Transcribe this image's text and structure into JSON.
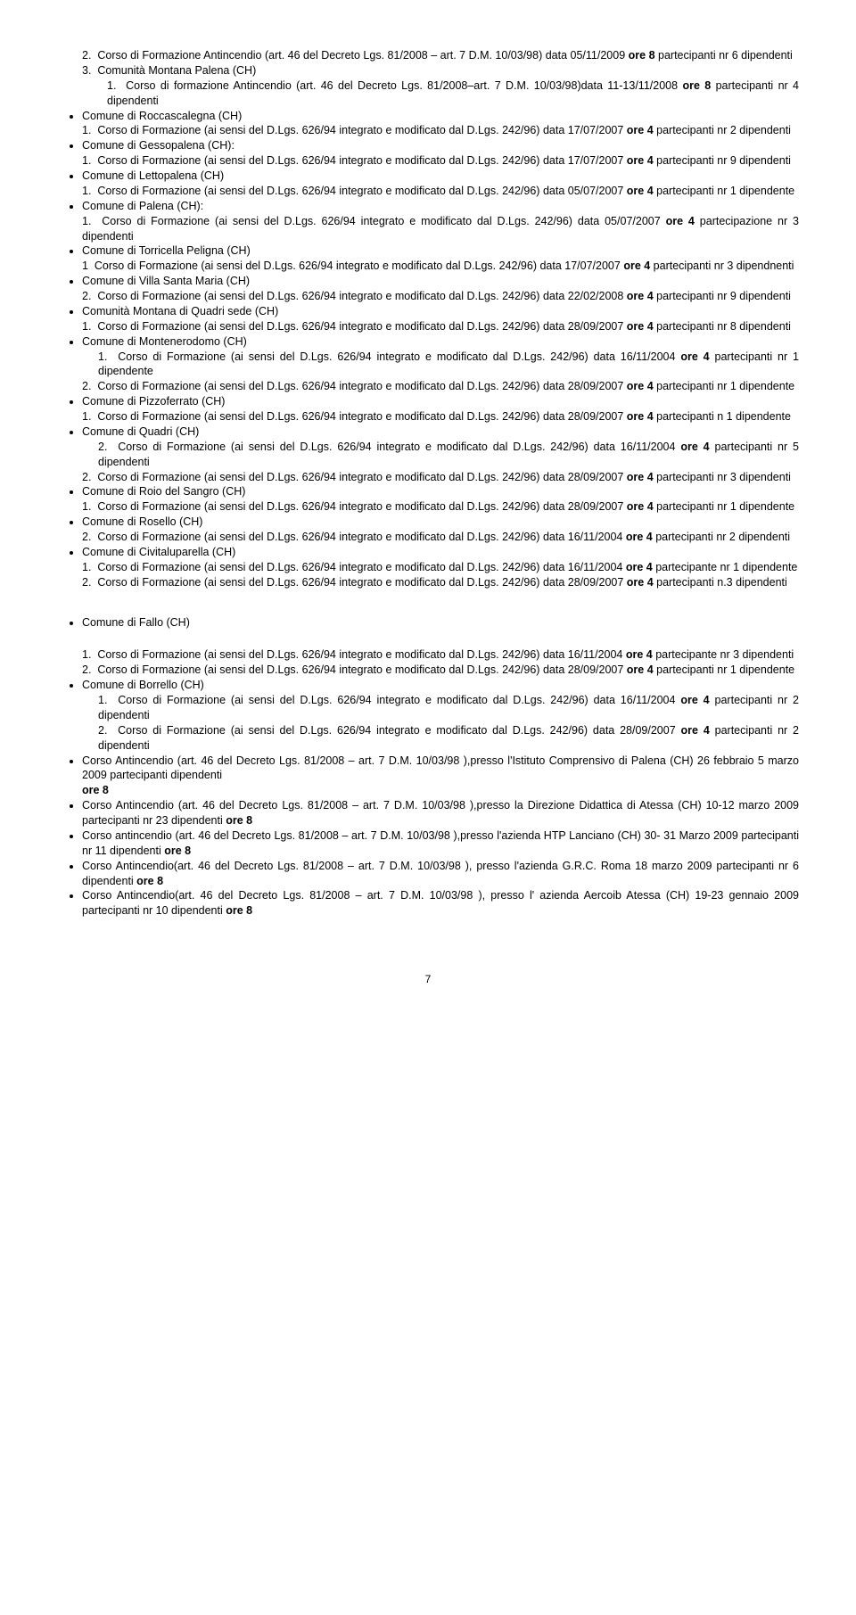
{
  "font_color": "#000000",
  "background_color": "#ffffff",
  "section1": {
    "items": [
      {
        "prefix": "2.",
        "text_a": "Corso di Formazione Antincendio (art. 46 del Decreto Lgs. 81/2008 – art. 7 D.M. 10/03/98) data 05/11/2009 ",
        "bold": "ore 8",
        "text_b": " partecipanti nr 6 dipendenti",
        "indent": true
      },
      {
        "prefix": "3.",
        "text_a": "Comunità Montana Palena  (CH)",
        "indent": true
      },
      {
        "prefix": "1.",
        "text_a": "Corso di formazione Antincendio (art. 46 del Decreto Lgs. 81/2008–art. 7 D.M. 10/03/98)data 11-13/11/2008 ",
        "bold": "ore 8",
        "text_b": "  partecipanti nr 4 dipendenti",
        "indent": true,
        "double_indent": true
      }
    ],
    "bullets": [
      {
        "head": "Comune di Roccascalegna (CH)",
        "lines": [
          {
            "prefix": "1.",
            "text_a": "Corso di Formazione (ai sensi del D.Lgs. 626/94 integrato e modificato dal D.Lgs. 242/96) data 17/07/2007 ",
            "bold": "ore 4",
            "text_b": " partecipanti nr 2 dipendenti"
          }
        ]
      },
      {
        "head": "Comune di Gessopalena (CH):",
        "lines": [
          {
            "prefix": "1.",
            "text_a": "Corso di Formazione (ai sensi del D.Lgs. 626/94 integrato e modificato dal D.Lgs. 242/96)  data 17/07/2007 ",
            "bold": "ore 4",
            "text_b": "  partecipanti nr 9 dipendenti"
          }
        ]
      },
      {
        "head": "Comune di Lettopalena (CH)",
        "lines": [
          {
            "prefix": "1.",
            "text_a": "Corso di Formazione (ai sensi del D.Lgs. 626/94 integrato e modificato dal D.Lgs. 242/96) data 05/07/2007 ",
            "bold": "ore 4",
            "text_b": " partecipanti nr 1 dipendente"
          }
        ]
      },
      {
        "head": "Comune di Palena (CH):",
        "lines": [
          {
            "prefix": "1.",
            "text_a": "Corso di Formazione (ai sensi del D.Lgs. 626/94 integrato e modificato dal D.Lgs. 242/96) data 05/07/2007 ",
            "bold": "ore 4",
            "text_b": " partecipazione nr 3 dipendenti"
          }
        ]
      },
      {
        "head": "Comune di Torricella Peligna (CH)",
        "lines": [
          {
            "prefix": "1",
            "text_a": "Corso di Formazione (ai sensi del D.Lgs. 626/94 integrato e modificato dal D.Lgs. 242/96) data 17/07/2007 ",
            "bold": "ore 4",
            "text_b": " partecipanti nr 3 dipendnenti"
          }
        ]
      },
      {
        "head": "Comune di Villa Santa Maria (CH)",
        "lines": [
          {
            "prefix": "2.",
            "text_a": "Corso di Formazione (ai sensi del D.Lgs. 626/94 integrato e modificato dal D.Lgs. 242/96) data 22/02/2008 ",
            "bold": "ore 4",
            "text_b": " partecipanti nr 9 dipendenti"
          }
        ]
      },
      {
        "head": "Comunità Montana di Quadri sede  (CH)",
        "lines": [
          {
            "prefix": "1.",
            "text_a": "Corso di Formazione (ai sensi del D.Lgs. 626/94 integrato e modificato dal D.Lgs. 242/96) data 28/09/2007 ",
            "bold": "ore 4",
            "text_b": " partecipanti nr 8 dipendenti"
          }
        ]
      },
      {
        "head": "Comune di Montenerodomo  (CH)",
        "lines": [
          {
            "prefix": "1.",
            "text_a": "Corso di Formazione (ai sensi del D.Lgs. 626/94 integrato e modificato dal D.Lgs. 242/96) data 16/11/2004 ",
            "bold": "ore 4",
            "text_b": " partecipanti nr  1 dipendente",
            "extra_indent": true
          },
          {
            "prefix": "2.",
            "text_a": "Corso di Formazione (ai sensi del D.Lgs. 626/94 integrato e modificato dal D.Lgs. 242/96) data 28/09/2007 ",
            "bold": "ore 4",
            "text_b": " partecipanti nr 1 dipendente"
          }
        ]
      },
      {
        "head": "Comune di Pizzoferrato  (CH)",
        "lines": [
          {
            "prefix": "1.",
            "text_a": "Corso di Formazione (ai sensi del D.Lgs. 626/94 integrato e modificato dal D.Lgs. 242/96) data 28/09/2007 ",
            "bold": "ore 4",
            "text_b": " partecipanti n 1 dipendente"
          }
        ]
      },
      {
        "head": "Comune di Quadri  (CH)",
        "lines": [
          {
            "prefix": "2.",
            "text_a": "Corso di Formazione (ai sensi del D.Lgs. 626/94 integrato e modificato dal D.Lgs. 242/96) data 16/11/2004 ",
            "bold": "ore 4",
            "text_b": " partecipanti nr 5 dipendenti",
            "extra_indent": true
          },
          {
            "prefix": "2.",
            "text_a": "Corso di Formazione (ai sensi del D.Lgs. 626/94 integrato e modificato dal D.Lgs. 242/96) data 28/09/2007 ",
            "bold": "ore 4",
            "text_b": " partecipanti nr 3 dipendenti"
          }
        ]
      },
      {
        "head": "Comune di Roio del Sangro  (CH)",
        "lines": [
          {
            "prefix": "1.",
            "text_a": "Corso di Formazione (ai sensi del D.Lgs. 626/94 integrato e modificato dal D.Lgs. 242/96) data 28/09/2007 ",
            "bold": "ore 4",
            "text_b": " partecipanti nr 1 dipendente"
          }
        ]
      },
      {
        "head": "Comune di Rosello  (CH)",
        "lines": [
          {
            "prefix": "2.",
            "text_a": "Corso di Formazione (ai sensi del D.Lgs. 626/94 integrato e modificato dal D.Lgs.  242/96) data 16/11/2004 ",
            "bold": "ore 4",
            "text_b": " partecipanti nr 2 dipendenti"
          }
        ]
      },
      {
        "head": "Comune di Civitaluparella  (CH)",
        "lines": [
          {
            "prefix": "1.",
            "text_a": "Corso di Formazione (ai sensi del D.Lgs. 626/94 integrato e modificato dal D.Lgs. 242/96) data 16/11/2004 ",
            "bold": "ore 4",
            "text_b": " partecipante nr 1 dipendente"
          },
          {
            "prefix": "2.",
            "text_a": "Corso di Formazione (ai sensi del D.Lgs. 626/94 integrato e modificato dal D.Lgs. 242/96) data 28/09/2007 ",
            "bold": "ore 4",
            "text_b": " partecipanti n.3 dipendenti"
          }
        ]
      }
    ]
  },
  "section2": {
    "bullets": [
      {
        "head": "Comune di Fallo (CH)",
        "gap_after_head": true,
        "lines": [
          {
            "prefix": "1.",
            "text_a": "Corso di Formazione (ai sensi del D.Lgs. 626/94 integrato e modificato dal D.Lgs. 242/96) data 16/11/2004 ",
            "bold": "ore 4",
            "text_b": " partecipante nr 3 dipendenti"
          },
          {
            "prefix": "2.",
            "text_a": "Corso di Formazione (ai sensi del D.Lgs. 626/94 integrato e modificato dal D.Lgs. 242/96) data 28/09/2007 ",
            "bold": "ore 4",
            "text_b": " partecipanti nr 1 dipendente"
          }
        ]
      },
      {
        "head": "Comune di Borrello (CH)",
        "lines": [
          {
            "prefix": "1.",
            "text_a": "Corso di Formazione (ai sensi del D.Lgs. 626/94 integrato e modificato dal D.Lgs. 242/96) data 16/11/2004 ",
            "bold": "ore 4",
            "text_b": " partecipanti nr 2 dipendenti",
            "extra_indent": true
          },
          {
            "prefix": "2.",
            "text_a": "Corso di Formazione (ai sensi del D.Lgs. 626/94 integrato e modificato dal D.Lgs. 242/96) data 28/09/2007 ",
            "bold": "ore 4",
            "text_b": " partecipanti nr 2 dipendenti",
            "extra_indent": true
          }
        ]
      },
      {
        "plain": true,
        "text_a": "Corso Antincendio (art. 46 del Decreto Lgs. 81/2008 – art. 7 D.M. 10/03/98 ),presso l'Istituto Comprensivo di Palena (CH) 26 febbraio 5 marzo 2009 partecipanti dipendenti",
        "bold_line": "ore 8"
      },
      {
        "plain": true,
        "text_a": "Corso Antincendio (art. 46 del Decreto Lgs. 81/2008 – art. 7 D.M. 10/03/98 ),presso la Direzione Didattica di Atessa (CH) 10-12 marzo 2009  partecipanti nr 23 dipendenti ",
        "bold_trail": "ore 8"
      },
      {
        "plain": true,
        "text_a": "Corso antincendio (art. 46 del Decreto Lgs. 81/2008 – art. 7 D.M. 10/03/98 ),presso l'azienda HTP Lanciano (CH)  30- 31 Marzo 2009 partecipanti nr 11 dipendenti ",
        "bold_trail": "ore 8"
      },
      {
        "plain": true,
        "text_a": "Corso Antincendio(art. 46 del Decreto Lgs. 81/2008 – art. 7 D.M. 10/03/98 ), presso l'azienda G.R.C.  Roma   18 marzo 2009 partecipanti nr 6 dipendenti ",
        "bold_trail": "ore 8"
      },
      {
        "plain": true,
        "text_a": "Corso Antincendio(art. 46 del Decreto Lgs. 81/2008 – art. 7 D.M. 10/03/98 ), presso l' azienda Aercoib Atessa (CH) 19-23 gennaio 2009  partecipanti nr 10 dipendenti ",
        "bold_trail": "ore 8"
      }
    ]
  },
  "page_number": "7"
}
